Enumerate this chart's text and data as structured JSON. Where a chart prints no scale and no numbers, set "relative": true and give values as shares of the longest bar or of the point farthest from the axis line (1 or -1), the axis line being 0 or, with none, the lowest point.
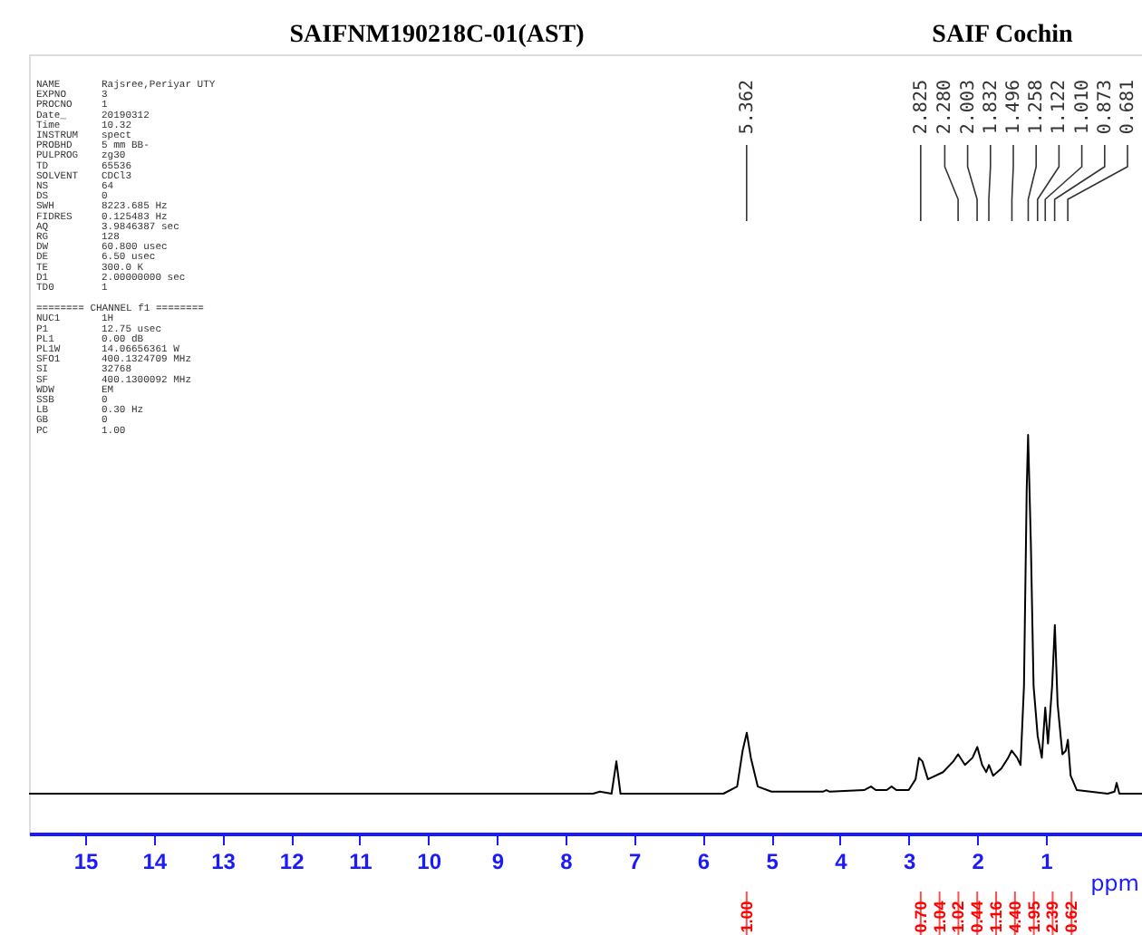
{
  "chart_data": {
    "type": "line",
    "title": "SAIFNM190218C-01(AST)",
    "subtitle": "SAIF Cochin",
    "xlabel": "ppm",
    "relative": true,
    "xlim": [
      15.82,
      -0.4
    ],
    "xticks": [
      15,
      14,
      13,
      12,
      11,
      10,
      9,
      8,
      7,
      6,
      5,
      4,
      3,
      2,
      1
    ],
    "tick_labels": "x",
    "grid": false,
    "legend": false,
    "series": [
      {
        "color": "#000000",
        "x": [
          15.82,
          9.0,
          7.6,
          7.5,
          7.33,
          7.26,
          7.2,
          5.7,
          5.5,
          5.42,
          5.36,
          5.3,
          5.2,
          5.0,
          4.25,
          4.2,
          4.15,
          3.65,
          3.55,
          3.48,
          3.32,
          3.25,
          3.18,
          3.0,
          2.9,
          2.85,
          2.8,
          2.72,
          2.5,
          2.35,
          2.28,
          2.18,
          2.07,
          2.0,
          1.93,
          1.87,
          1.83,
          1.77,
          1.65,
          1.55,
          1.5,
          1.42,
          1.37,
          1.32,
          1.28,
          1.26,
          1.22,
          1.18,
          1.12,
          1.06,
          1.01,
          0.97,
          0.91,
          0.87,
          0.83,
          0.76,
          0.71,
          0.68,
          0.64,
          0.55,
          0.1,
          0.0,
          -0.03,
          -0.07,
          -0.4
        ],
        "values": [
          0.1,
          0.1,
          0.1,
          0.105,
          0.1,
          0.181,
          0.1,
          0.1,
          0.118,
          0.208,
          0.253,
          0.19,
          0.118,
          0.105,
          0.105,
          0.109,
          0.105,
          0.109,
          0.118,
          0.109,
          0.109,
          0.118,
          0.109,
          0.109,
          0.136,
          0.19,
          0.181,
          0.136,
          0.154,
          0.181,
          0.199,
          0.172,
          0.19,
          0.217,
          0.172,
          0.154,
          0.172,
          0.145,
          0.163,
          0.19,
          0.208,
          0.19,
          0.172,
          0.37,
          0.865,
          1.0,
          0.73,
          0.37,
          0.244,
          0.19,
          0.316,
          0.226,
          0.37,
          0.523,
          0.325,
          0.199,
          0.208,
          0.235,
          0.145,
          0.109,
          0.1,
          0.105,
          0.127,
          0.1,
          0.1
        ]
      }
    ],
    "annotations": [
      "NAME Rajsree,Periyar UTY",
      "EXPNO 3",
      "PROCNO 1",
      "Date_ 20190312",
      "Time 10.32",
      "INSTRUM spect",
      "PROBHD 5 mm BB-",
      "PULPROG zg30",
      "TD 65536",
      "SOLVENT CDCl3",
      "NS 64",
      "DS 0",
      "SWH 8223.685 Hz",
      "FIDRES 0.125483 Hz",
      "AQ 3.9846387 sec",
      "RG 128",
      "DW 60.800 usec",
      "DE 6.50 usec",
      "TE 300.0 K",
      "D1 2.00000000 sec",
      "TD0 1",
      "======== CHANNEL f1 ========",
      "NUC1 1H",
      "P1 12.75 usec",
      "PL1 0.00 dB",
      "PL1W 14.06656361 W",
      "SFO1 400.1324709 MHz",
      "SI 32768",
      "SF 400.1300092 MHz",
      "WDW EM",
      "SSB 0",
      "LB 0.30 Hz",
      "GB 0",
      "PC 1.00",
      "5.362",
      "2.825",
      "2.280",
      "2.003",
      "1.832",
      "1.496",
      "1.258",
      "1.122",
      "1.010",
      "0.873",
      "0.681",
      "1.00",
      "0.70",
      "1.04",
      "1.02",
      "0.44",
      "1.16",
      "4.40",
      "1.95",
      "2.39",
      "0.62"
    ]
  }
}
